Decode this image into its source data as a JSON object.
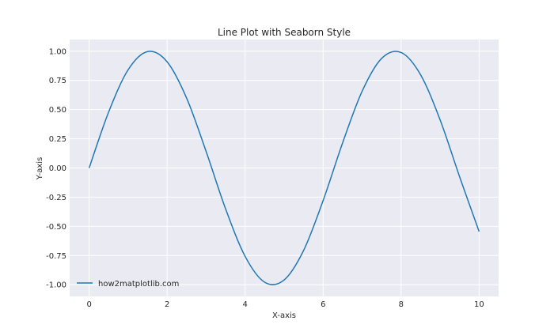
{
  "chart_data": {
    "type": "line",
    "title": "Line Plot with Seaborn Style",
    "xlabel": "X-axis",
    "ylabel": "Y-axis",
    "xlim": [
      -0.5,
      10.5
    ],
    "ylim": [
      -1.1,
      1.1
    ],
    "x_ticks": [
      0,
      2,
      4,
      6,
      8,
      10
    ],
    "x_tick_labels": [
      "0",
      "2",
      "4",
      "6",
      "8",
      "10"
    ],
    "y_ticks": [
      1.0,
      0.75,
      0.5,
      0.25,
      0.0,
      -0.25,
      -0.5,
      -0.75,
      -1.0
    ],
    "y_tick_labels": [
      "1.00",
      "0.75",
      "0.50",
      "0.25",
      "0.00",
      "-0.25",
      "-0.50",
      "-0.75",
      "-1.00"
    ],
    "grid": true,
    "legend_position": "lower-left",
    "background_color": "#eaeaf2",
    "grid_color": "#ffffff",
    "series": [
      {
        "name": "how2matplotlib.com",
        "color": "#1f77b4",
        "x": [
          0,
          0.5,
          1,
          1.5,
          2,
          2.5,
          3,
          3.5,
          4,
          4.5,
          5,
          5.5,
          6,
          6.5,
          7,
          7.5,
          8,
          8.5,
          9,
          9.5,
          10
        ],
        "y": [
          0.0,
          0.479,
          0.841,
          0.997,
          0.909,
          0.598,
          0.141,
          -0.351,
          -0.757,
          -0.978,
          -0.959,
          -0.706,
          -0.279,
          0.215,
          0.657,
          0.938,
          0.989,
          0.798,
          0.412,
          -0.075,
          -0.544
        ]
      }
    ]
  }
}
